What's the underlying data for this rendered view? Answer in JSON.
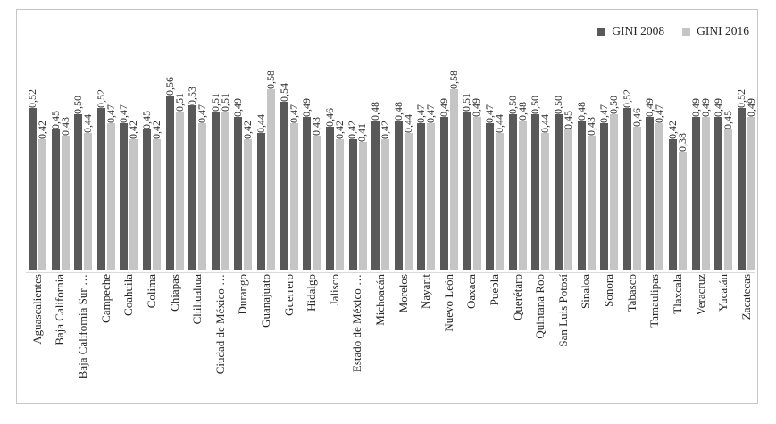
{
  "chart_data": {
    "type": "bar",
    "title": "",
    "xlabel": "",
    "ylabel": "",
    "ylim": [
      0,
      0.62
    ],
    "grid": false,
    "legend_position": "top-right",
    "value_label_format": "comma-decimal",
    "axis_color": "#d9d9d9",
    "categories": [
      "Aguascalientes",
      "Baja California",
      "Baja California Sur …",
      "Campeche",
      "Coahuila",
      "Colima",
      "Chiapas",
      "Chihuahua",
      "Ciudad de México …",
      "Durango",
      "Guanajuato",
      "Guerrero",
      "Hidalgo",
      "Jalisco",
      "Estado de México …",
      "Michoacán",
      "Morelos",
      "Nayarit",
      "Nuevo León",
      "Oaxaca",
      "Puebla",
      "Querétaro",
      "Quintana Roo",
      "San Luis Potosí",
      "Sinaloa",
      "Sonora",
      "Tabasco",
      "Tamaulipas",
      "Tlaxcala",
      "Veracruz",
      "Yucatán",
      "Zacatecas"
    ],
    "series": [
      {
        "name": "GINI 2008",
        "color": "#595959",
        "values": [
          0.52,
          0.45,
          0.5,
          0.52,
          0.47,
          0.45,
          0.56,
          0.53,
          0.51,
          0.49,
          0.44,
          0.54,
          0.49,
          0.46,
          0.42,
          0.48,
          0.48,
          0.47,
          0.49,
          0.51,
          0.47,
          0.5,
          0.5,
          0.5,
          0.48,
          0.47,
          0.52,
          0.49,
          0.42,
          0.49,
          0.49,
          0.52
        ],
        "labels": [
          "0,52",
          "0,45",
          "0,50",
          "0,52",
          "0,47",
          "0,45",
          "0,56",
          "0,53",
          "0,51",
          "0,49",
          "0,44",
          "0,54",
          "0,49",
          "0,46",
          "0,42",
          "0,48",
          "0,48",
          "0,47",
          "0,49",
          "0,51",
          "0,47",
          "0,50",
          "0,50",
          "0,50",
          "0,48",
          "0,47",
          "0,52",
          "0,49",
          "0,42",
          "0,49",
          "0,49",
          "0,52"
        ]
      },
      {
        "name": "GINI 2016",
        "color": "#c5c5c5",
        "values": [
          0.42,
          0.43,
          0.44,
          0.47,
          0.42,
          0.42,
          0.51,
          0.47,
          0.51,
          0.42,
          0.58,
          0.47,
          0.43,
          0.42,
          0.41,
          0.42,
          0.44,
          0.47,
          0.58,
          0.49,
          0.44,
          0.48,
          0.44,
          0.45,
          0.43,
          0.5,
          0.46,
          0.47,
          0.38,
          0.49,
          0.45,
          0.49
        ],
        "labels": [
          "0,42",
          "0,43",
          "0,44",
          "0,47",
          "0,42",
          "0,42",
          "0,51",
          "0,47",
          "0,51",
          "0,42",
          "0,58",
          "0,47",
          "0,43",
          "0,42",
          "0,41",
          "0,42",
          "0,44",
          "0,47",
          "0,58",
          "0,49",
          "0,44",
          "0,48",
          "0,44",
          "0,45",
          "0,43",
          "0,50",
          "0,46",
          "0,47",
          "0,38",
          "0,49",
          "0,45",
          "0,49"
        ]
      }
    ]
  }
}
